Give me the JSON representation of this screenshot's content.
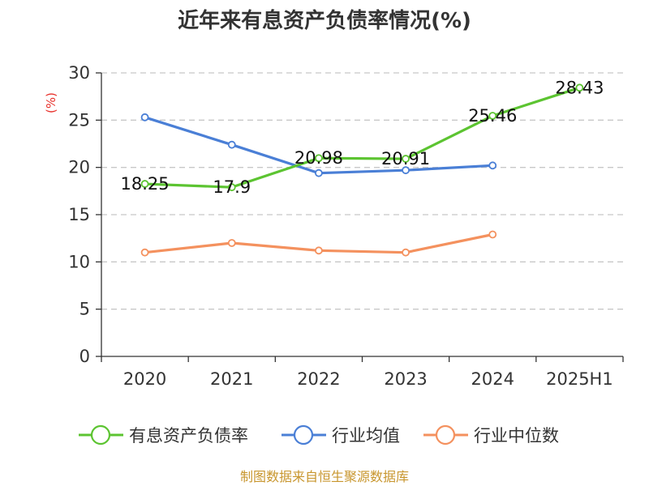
{
  "chart_data": {
    "type": "line",
    "title": "近年来有息资产负债率情况(%)",
    "ylabel": "(%)",
    "categories": [
      "2020",
      "2021",
      "2022",
      "2023",
      "2024",
      "2025H1"
    ],
    "ylim": [
      0,
      30
    ],
    "yticks": [
      0,
      5,
      10,
      15,
      20,
      25,
      30
    ],
    "grid": true,
    "legend_position": "bottom",
    "series": [
      {
        "name": "有息资产负债率",
        "color": "#5cc431",
        "values": [
          18.25,
          17.9,
          20.98,
          20.91,
          25.46,
          28.43
        ],
        "labels": [
          "18.25",
          "17.9",
          "20.98",
          "20.91",
          "25.46",
          "28.43"
        ]
      },
      {
        "name": "行业均值",
        "color": "#4a7fd6",
        "values": [
          25.3,
          22.4,
          19.4,
          19.7,
          20.2,
          null
        ]
      },
      {
        "name": "行业中位数",
        "color": "#f4915e",
        "values": [
          11.0,
          12.0,
          11.2,
          11.0,
          12.9,
          null
        ]
      }
    ]
  },
  "source": "制图数据来自恒生聚源数据库"
}
